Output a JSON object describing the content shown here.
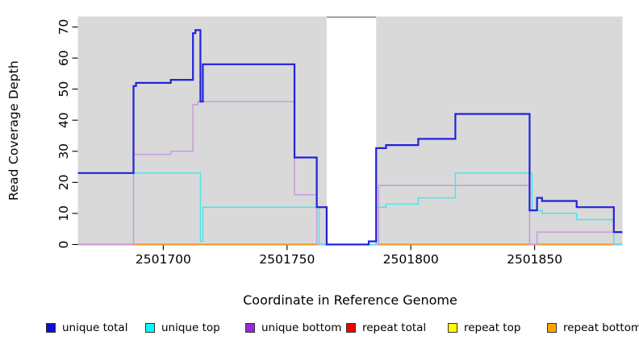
{
  "figure": {
    "y_axis_label": "Read Coverage Depth",
    "x_axis_label": "Coordinate in Reference Genome"
  },
  "colors": {
    "panel_background": "#d9d9d9",
    "masked_band": "#ffffff",
    "masked_band_top_border": "#8a8a8a",
    "axis_text": "#000000"
  },
  "chart_data": {
    "type": "line",
    "subtype": "step",
    "title": "",
    "xlabel": "Coordinate in Reference Genome",
    "ylabel": "Read Coverage Depth",
    "xlim": [
      2501665.5,
      2501885.5
    ],
    "ylim": [
      0,
      73.5
    ],
    "x_ticks": [
      2501700,
      2501750,
      2501800,
      2501850
    ],
    "y_ticks": [
      0,
      10,
      20,
      30,
      40,
      50,
      60,
      70
    ],
    "grid": false,
    "legend_position": "bottom",
    "panel_background": "#d9d9d9",
    "masked_region": {
      "x_start": 2501766,
      "x_end": 2501786,
      "color": "#ffffff"
    },
    "series": [
      {
        "name": "unique total",
        "color": "#2222dd",
        "legend_color": "#0f0fd0",
        "steps": [
          [
            2501665.5,
            23
          ],
          [
            2501688,
            51
          ],
          [
            2501689,
            52
          ],
          [
            2501703,
            53
          ],
          [
            2501712,
            68
          ],
          [
            2501713,
            69
          ],
          [
            2501715,
            46
          ],
          [
            2501716,
            58
          ],
          [
            2501753,
            28
          ],
          [
            2501762,
            12
          ],
          [
            2501766,
            0
          ],
          [
            2501783,
            1
          ],
          [
            2501786,
            31
          ],
          [
            2501790,
            32
          ],
          [
            2501803,
            34
          ],
          [
            2501818,
            42
          ],
          [
            2501848,
            11
          ],
          [
            2501851,
            15
          ],
          [
            2501853,
            14
          ],
          [
            2501867,
            12
          ],
          [
            2501882,
            4
          ]
        ]
      },
      {
        "name": "unique top",
        "color": "#4fe3e9",
        "legend_color": "#00ffff",
        "steps": [
          [
            2501665.5,
            23
          ],
          [
            2501715,
            1
          ],
          [
            2501716,
            12
          ],
          [
            2501763,
            0
          ],
          [
            2501786,
            12
          ],
          [
            2501790,
            13
          ],
          [
            2501803,
            15
          ],
          [
            2501818,
            23
          ],
          [
            2501849,
            11
          ],
          [
            2501853,
            10
          ],
          [
            2501867,
            8
          ],
          [
            2501882,
            0
          ]
        ]
      },
      {
        "name": "unique bottom",
        "color": "#c89ade",
        "legend_color": "#9929d6",
        "steps": [
          [
            2501665.5,
            0
          ],
          [
            2501688,
            29
          ],
          [
            2501703,
            30
          ],
          [
            2501712,
            45
          ],
          [
            2501714,
            46
          ],
          [
            2501753,
            16
          ],
          [
            2501762,
            0
          ],
          [
            2501787,
            19
          ],
          [
            2501848,
            0
          ],
          [
            2501851,
            4
          ]
        ]
      },
      {
        "name": "repeat total",
        "color": "#dd1111",
        "legend_color": "#ee0000",
        "steps": [
          [
            2501665.5,
            0
          ]
        ]
      },
      {
        "name": "repeat top",
        "color": "#eeee00",
        "legend_color": "#ffff00",
        "steps": [
          [
            2501665.5,
            0
          ]
        ]
      },
      {
        "name": "repeat bottom",
        "color": "#f59120",
        "legend_color": "#ffa500",
        "steps": [
          [
            2501665.5,
            0
          ]
        ]
      }
    ]
  }
}
